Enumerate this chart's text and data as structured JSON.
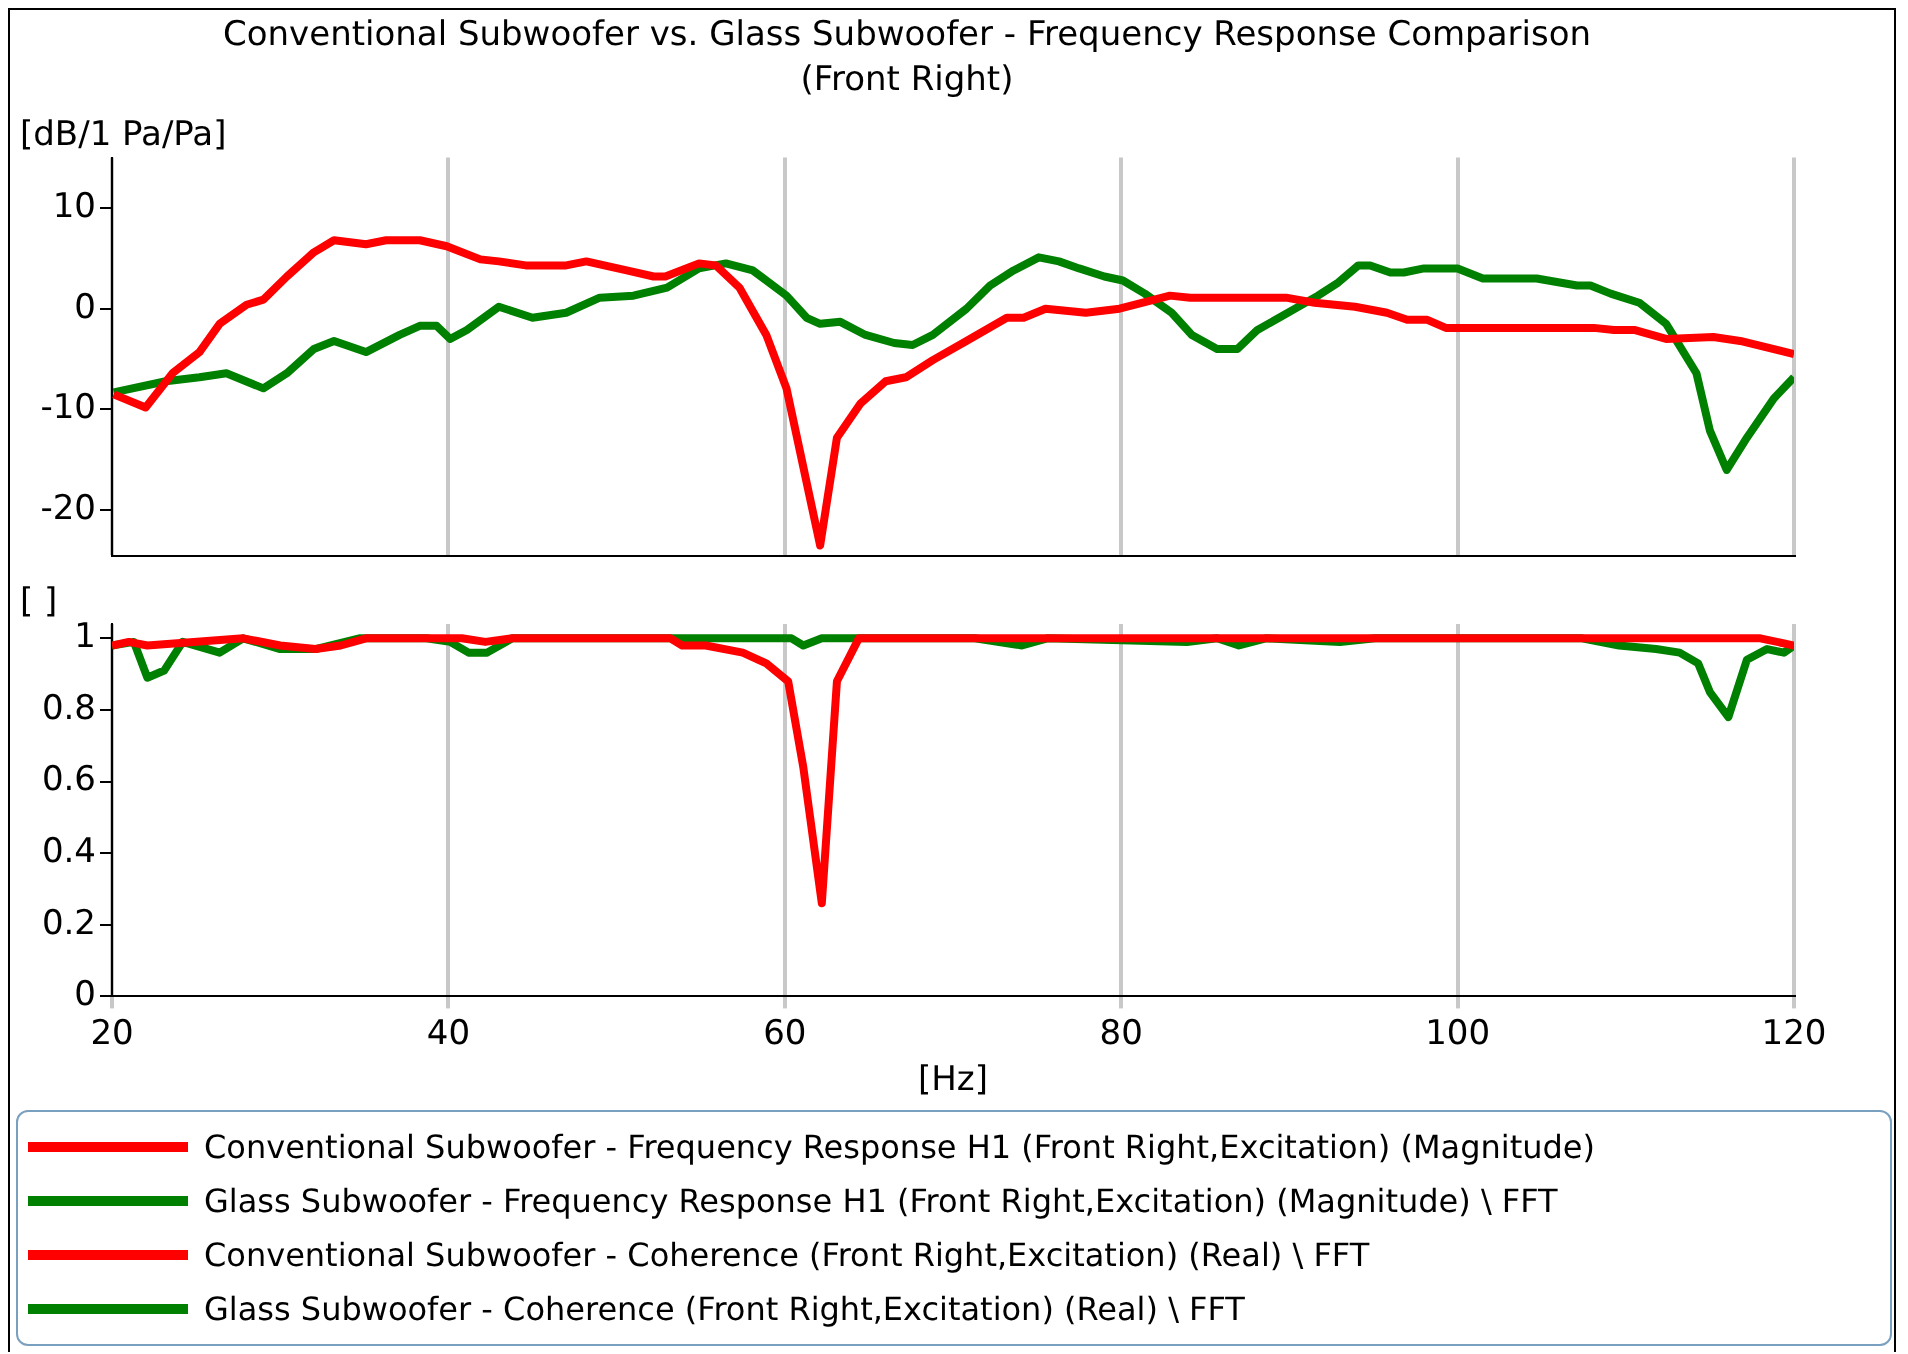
{
  "chart_data": [
    {
      "type": "line",
      "title": "Conventional Subwoofer vs. Glass Subwoofer - Frequency Response Comparison",
      "subtitle": "(Front Right)",
      "ylabel": "[dB/1 Pa/Pa]",
      "xlim": [
        20,
        120
      ],
      "xticks": [
        20,
        40,
        60,
        80,
        100,
        120
      ],
      "ylim": [
        -24.5,
        15
      ],
      "yticks": [
        -20,
        -10,
        0,
        10
      ],
      "grid": "x",
      "tick_labels": "y",
      "legend": "bottom",
      "series": [
        {
          "name": "Conventional Subwoofer - Frequency Response H1 (Front Right,Excitation) (Magnitude)",
          "color": "#ff0000",
          "x": [
            20.1,
            22,
            23.6,
            25.2,
            26.4,
            28,
            29,
            30.4,
            32,
            33.2,
            35.1,
            36.3,
            38.3,
            39.9,
            41.9,
            43,
            44.6,
            47,
            48.2,
            50.6,
            52.2,
            52.9,
            54.9,
            55.9,
            57.3,
            58.9,
            60.1,
            62.1,
            63.1,
            64.5,
            66,
            67.2,
            68.8,
            70.8,
            73.2,
            74.2,
            75.5,
            77.9,
            79.9,
            82.9,
            84.1,
            89.8,
            91.5,
            93.9,
            95.8,
            97,
            98.2,
            99.3,
            108.1,
            109.3,
            110.5,
            112.4,
            115.2,
            116.8,
            120
          ],
          "values": [
            -8.5,
            -9.8,
            -6.4,
            -4.3,
            -1.5,
            0.4,
            0.9,
            3.2,
            5.6,
            6.8,
            6.4,
            6.8,
            6.8,
            6.2,
            4.9,
            4.7,
            4.3,
            4.3,
            4.7,
            3.8,
            3.2,
            3.2,
            4.5,
            4.3,
            2.1,
            -2.6,
            -7.9,
            -23.5,
            -12.8,
            -9.4,
            -7.2,
            -6.8,
            -5.1,
            -3.2,
            -0.9,
            -0.9,
            0,
            -0.4,
            0,
            1.3,
            1.1,
            1.1,
            0.6,
            0.2,
            -0.4,
            -1.1,
            -1.1,
            -1.9,
            -1.9,
            -2.1,
            -2.1,
            -3,
            -2.8,
            -3.2,
            -4.5
          ]
        },
        {
          "name": "Glass Subwoofer - Frequency Response H1 (Front Right,Excitation) (Magnitude) \\ FFT",
          "color": "#008000",
          "x": [
            20.1,
            23.2,
            25.2,
            26.8,
            29,
            30.4,
            32,
            33.2,
            35.1,
            37.1,
            38.3,
            39.3,
            40.1,
            41.1,
            43,
            45,
            47,
            49,
            51,
            53,
            54.9,
            56.5,
            58.1,
            60.1,
            61.3,
            62.1,
            63.3,
            64.8,
            66.5,
            67.6,
            68.8,
            70.8,
            72.2,
            73.6,
            75.1,
            76.3,
            77.5,
            79,
            80.1,
            81.4,
            83,
            84.2,
            85.7,
            86.9,
            88.1,
            89.7,
            91.7,
            92.9,
            94.1,
            94.8,
            96,
            96.8,
            98,
            100,
            101.5,
            104.7,
            107.1,
            107.9,
            109.1,
            110.8,
            112.4,
            114.2,
            115,
            116,
            117.2,
            118.8,
            120
          ],
          "values": [
            -8.3,
            -7.2,
            -6.8,
            -6.4,
            -7.9,
            -6.4,
            -4,
            -3.2,
            -4.3,
            -2.6,
            -1.7,
            -1.7,
            -3,
            -2.1,
            0.2,
            -0.9,
            -0.4,
            1.1,
            1.3,
            2.1,
            4,
            4.5,
            3.8,
            1.3,
            -0.9,
            -1.5,
            -1.3,
            -2.6,
            -3.4,
            -3.6,
            -2.6,
            0,
            2.3,
            3.8,
            5.1,
            4.7,
            4,
            3.2,
            2.8,
            1.5,
            -0.4,
            -2.6,
            -4,
            -4,
            -2.1,
            -0.6,
            1.3,
            2.6,
            4.3,
            4.3,
            3.6,
            3.6,
            4,
            4,
            3,
            3,
            2.3,
            2.3,
            1.5,
            0.6,
            -1.5,
            -6.4,
            -12.1,
            -16,
            -12.8,
            -8.9,
            -6.8
          ]
        }
      ]
    },
    {
      "type": "line",
      "xlabel": "[Hz]",
      "ylabel": "[ ]",
      "xlim": [
        20,
        120
      ],
      "xticks": [
        20,
        40,
        60,
        80,
        100,
        120
      ],
      "ylim": [
        0,
        1.04
      ],
      "yticks": [
        0,
        0.2,
        0.4,
        0.6,
        0.8,
        1
      ],
      "grid": "x",
      "legend": "bottom",
      "series": [
        {
          "name": "Conventional Subwoofer - Coherence (Front Right,Excitation) (Real) \\ FFT",
          "color": "#ff0000",
          "x": [
            20,
            21,
            22.1,
            27.8,
            30,
            32.1,
            33.6,
            35.1,
            40.8,
            42.2,
            43.8,
            49.5,
            53.2,
            53.9,
            55.3,
            57.5,
            58.9,
            60.2,
            61.1,
            62.2,
            63.1,
            64.4,
            70,
            80,
            90,
            100,
            110,
            118,
            120
          ],
          "values": [
            0.98,
            0.99,
            0.98,
            1,
            0.98,
            0.97,
            0.98,
            1,
            1,
            0.99,
            1,
            1,
            1,
            0.98,
            0.98,
            0.96,
            0.93,
            0.88,
            0.64,
            0.26,
            0.88,
            1,
            1,
            1,
            1,
            1,
            1,
            1,
            0.98
          ]
        },
        {
          "name": "Glass Subwoofer - Coherence (Front Right,Excitation) (Real) \\ FFT",
          "color": "#008000",
          "x": [
            20,
            21.3,
            22.1,
            23.1,
            24.2,
            26.4,
            27.8,
            30,
            32.1,
            34.7,
            38.7,
            40.1,
            41.2,
            42.3,
            43.8,
            53.9,
            60.4,
            61.1,
            62.2,
            71.3,
            74.1,
            75.6,
            83.9,
            85.7,
            87,
            88.6,
            93,
            95.1,
            107.4,
            109.6,
            111.8,
            113.2,
            114.3,
            115,
            116.1,
            117.2,
            118.4,
            119.4,
            120
          ],
          "values": [
            0.98,
            0.99,
            0.89,
            0.91,
            0.99,
            0.96,
            1,
            0.97,
            0.97,
            1,
            1,
            0.99,
            0.96,
            0.96,
            1,
            1,
            1,
            0.98,
            1,
            1,
            0.98,
            1,
            0.99,
            1,
            0.98,
            1,
            0.99,
            1,
            1,
            0.98,
            0.97,
            0.96,
            0.93,
            0.85,
            0.78,
            0.94,
            0.97,
            0.96,
            0.98
          ]
        }
      ]
    }
  ]
}
